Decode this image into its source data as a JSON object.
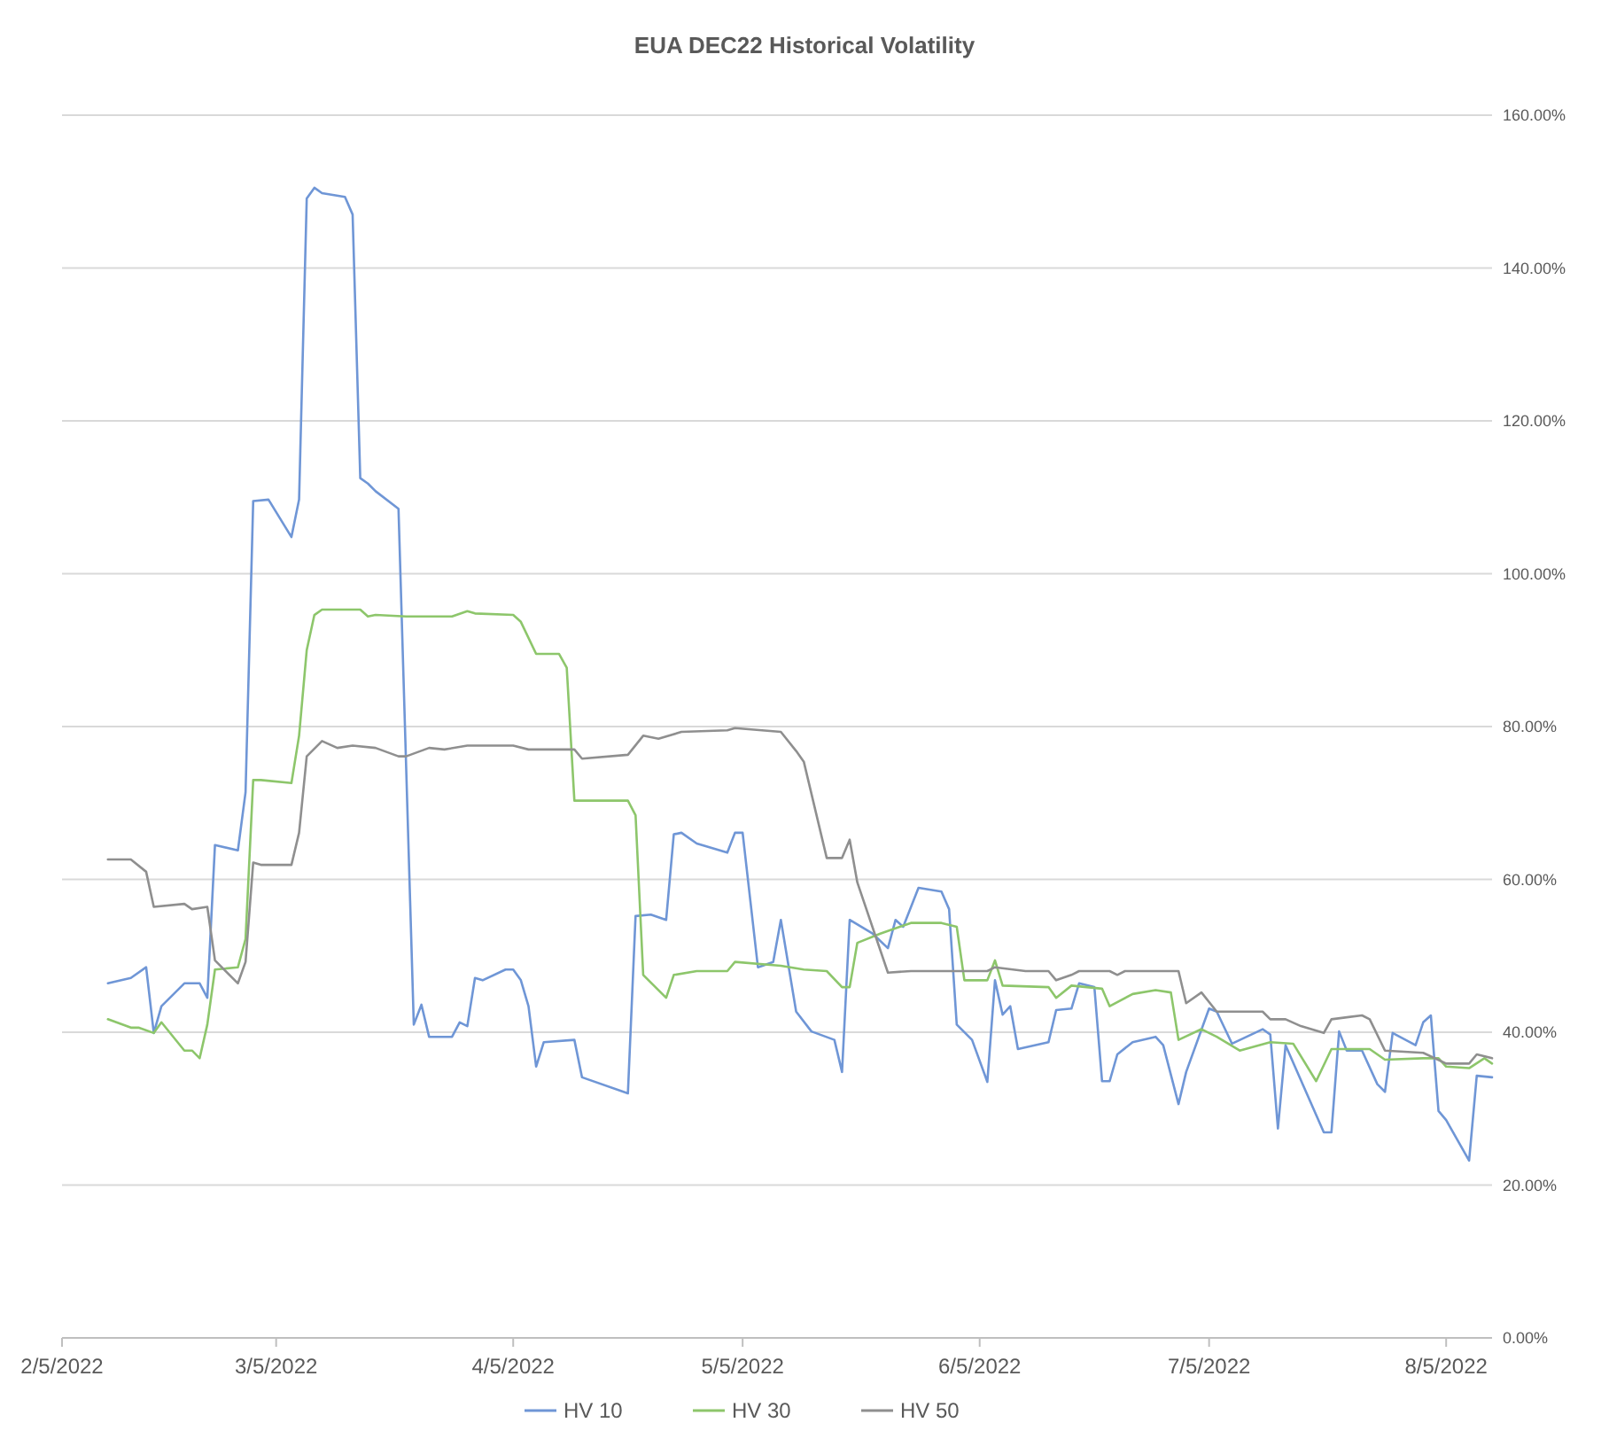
{
  "chart_data": {
    "type": "line",
    "title": "EUA DEC22 Historical Volatility",
    "grid": "y",
    "legend": "bottom",
    "xlim": [
      "2022-02-05",
      "2022-08-11"
    ],
    "xticks": [
      {
        "value": "2022-02-05",
        "label": "2/5/2022"
      },
      {
        "value": "2022-03-05",
        "label": "3/5/2022"
      },
      {
        "value": "2022-04-05",
        "label": "4/5/2022"
      },
      {
        "value": "2022-05-05",
        "label": "5/5/2022"
      },
      {
        "value": "2022-06-05",
        "label": "6/5/2022"
      },
      {
        "value": "2022-07-05",
        "label": "7/5/2022"
      },
      {
        "value": "2022-08-05",
        "label": "8/5/2022"
      }
    ],
    "ylim": [
      0,
      160
    ],
    "yticks": [
      {
        "value": 0,
        "label": "0.00%"
      },
      {
        "value": 20,
        "label": "20.00%"
      },
      {
        "value": 40,
        "label": "40.00%"
      },
      {
        "value": 60,
        "label": "60.00%"
      },
      {
        "value": 80,
        "label": "80.00%"
      },
      {
        "value": 100,
        "label": "100.00%"
      },
      {
        "value": 120,
        "label": "120.00%"
      },
      {
        "value": 140,
        "label": "140.00%"
      },
      {
        "value": 160,
        "label": "160.00%"
      }
    ],
    "series": [
      {
        "name": "HV 10",
        "color": "#6f96d6",
        "x": [
          "2022-02-11",
          "2022-02-14",
          "2022-02-16",
          "2022-02-17",
          "2022-02-18",
          "2022-02-21",
          "2022-02-23",
          "2022-02-24",
          "2022-02-25",
          "2022-02-28",
          "2022-03-01",
          "2022-03-02",
          "2022-03-04",
          "2022-03-07",
          "2022-03-08",
          "2022-03-09",
          "2022-03-10",
          "2022-03-11",
          "2022-03-14",
          "2022-03-15",
          "2022-03-16",
          "2022-03-17",
          "2022-03-18",
          "2022-03-21",
          "2022-03-23",
          "2022-03-24",
          "2022-03-25",
          "2022-03-28",
          "2022-03-29",
          "2022-03-30",
          "2022-03-31",
          "2022-04-01",
          "2022-04-04",
          "2022-04-05",
          "2022-04-06",
          "2022-04-07",
          "2022-04-08",
          "2022-04-09",
          "2022-04-13",
          "2022-04-14",
          "2022-04-20",
          "2022-04-21",
          "2022-04-23",
          "2022-04-25",
          "2022-04-26",
          "2022-04-27",
          "2022-04-29",
          "2022-05-03",
          "2022-05-04",
          "2022-05-05",
          "2022-05-07",
          "2022-05-09",
          "2022-05-10",
          "2022-05-12",
          "2022-05-14",
          "2022-05-17",
          "2022-05-18",
          "2022-05-19",
          "2022-05-22",
          "2022-05-24",
          "2022-05-25",
          "2022-05-26",
          "2022-05-28",
          "2022-05-31",
          "2022-06-01",
          "2022-06-02",
          "2022-06-04",
          "2022-06-06",
          "2022-06-07",
          "2022-06-08",
          "2022-06-09",
          "2022-06-10",
          "2022-06-14",
          "2022-06-15",
          "2022-06-17",
          "2022-06-18",
          "2022-06-20",
          "2022-06-21",
          "2022-06-22",
          "2022-06-23",
          "2022-06-25",
          "2022-06-28",
          "2022-06-29",
          "2022-07-01",
          "2022-07-02",
          "2022-07-05",
          "2022-07-06",
          "2022-07-08",
          "2022-07-12",
          "2022-07-13",
          "2022-07-14",
          "2022-07-15",
          "2022-07-20",
          "2022-07-21",
          "2022-07-22",
          "2022-07-23",
          "2022-07-25",
          "2022-07-27",
          "2022-07-28",
          "2022-07-29",
          "2022-08-01",
          "2022-08-02",
          "2022-08-03",
          "2022-08-04",
          "2022-08-05",
          "2022-08-08",
          "2022-08-09",
          "2022-08-11"
        ],
        "values": [
          46.4,
          47.1,
          48.5,
          39.9,
          43.4,
          46.4,
          46.4,
          44.5,
          64.5,
          63.8,
          71.4,
          109.5,
          109.7,
          104.8,
          109.7,
          149.1,
          150.5,
          149.8,
          149.3,
          147.0,
          112.5,
          111.8,
          110.8,
          108.5,
          41.0,
          43.6,
          39.4,
          39.4,
          41.3,
          40.8,
          47.1,
          46.8,
          48.2,
          48.2,
          46.8,
          43.4,
          35.5,
          38.7,
          39.0,
          34.1,
          32.0,
          55.2,
          55.4,
          54.7,
          65.9,
          66.1,
          64.7,
          63.5,
          66.1,
          66.1,
          48.5,
          49.2,
          54.7,
          42.7,
          40.1,
          39.0,
          34.8,
          54.7,
          52.9,
          51.0,
          54.7,
          53.8,
          58.9,
          58.4,
          56.1,
          41.0,
          39.0,
          33.5,
          46.8,
          42.3,
          43.4,
          37.8,
          38.7,
          42.9,
          43.1,
          46.4,
          45.9,
          33.6,
          33.6,
          37.1,
          38.7,
          39.4,
          38.3,
          30.6,
          34.8,
          43.1,
          42.7,
          38.5,
          40.4,
          39.7,
          27.4,
          38.3,
          26.9,
          26.9,
          40.1,
          37.6,
          37.6,
          33.2,
          32.2,
          39.9,
          38.3,
          41.3,
          42.2,
          29.7,
          28.5,
          23.2,
          34.3,
          34.1
        ]
      },
      {
        "name": "HV 30",
        "color": "#8dc66b",
        "x": [
          "2022-02-11",
          "2022-02-14",
          "2022-02-15",
          "2022-02-17",
          "2022-02-18",
          "2022-02-21",
          "2022-02-22",
          "2022-02-23",
          "2022-02-24",
          "2022-02-25",
          "2022-02-28",
          "2022-03-01",
          "2022-03-02",
          "2022-03-03",
          "2022-03-07",
          "2022-03-08",
          "2022-03-09",
          "2022-03-10",
          "2022-03-11",
          "2022-03-16",
          "2022-03-17",
          "2022-03-18",
          "2022-03-22",
          "2022-03-28",
          "2022-03-30",
          "2022-03-31",
          "2022-04-05",
          "2022-04-06",
          "2022-04-08",
          "2022-04-11",
          "2022-04-12",
          "2022-04-13",
          "2022-04-20",
          "2022-04-21",
          "2022-04-22",
          "2022-04-25",
          "2022-04-26",
          "2022-04-29",
          "2022-05-03",
          "2022-05-04",
          "2022-05-10",
          "2022-05-13",
          "2022-05-16",
          "2022-05-18",
          "2022-05-19",
          "2022-05-20",
          "2022-05-23",
          "2022-05-27",
          "2022-05-31",
          "2022-06-02",
          "2022-06-03",
          "2022-06-06",
          "2022-06-07",
          "2022-06-08",
          "2022-06-14",
          "2022-06-15",
          "2022-06-17",
          "2022-06-21",
          "2022-06-22",
          "2022-06-25",
          "2022-06-28",
          "2022-06-30",
          "2022-07-01",
          "2022-07-04",
          "2022-07-06",
          "2022-07-09",
          "2022-07-13",
          "2022-07-16",
          "2022-07-19",
          "2022-07-21",
          "2022-07-26",
          "2022-07-28",
          "2022-08-02",
          "2022-08-04",
          "2022-08-05",
          "2022-08-08",
          "2022-08-10",
          "2022-08-11"
        ],
        "values": [
          41.7,
          40.6,
          40.6,
          39.9,
          41.3,
          37.6,
          37.6,
          36.6,
          41.0,
          48.2,
          48.5,
          52.2,
          73.0,
          73.0,
          72.6,
          78.8,
          90.0,
          94.6,
          95.3,
          95.3,
          94.4,
          94.6,
          94.4,
          94.4,
          95.1,
          94.8,
          94.6,
          93.7,
          89.5,
          89.5,
          87.7,
          70.3,
          70.3,
          68.4,
          47.5,
          44.5,
          47.5,
          48.0,
          48.0,
          49.2,
          48.7,
          48.2,
          48.0,
          45.9,
          45.9,
          51.7,
          52.9,
          54.3,
          54.3,
          53.8,
          46.8,
          46.8,
          49.4,
          46.1,
          45.9,
          44.5,
          46.1,
          45.7,
          43.4,
          45.0,
          45.5,
          45.2,
          39.0,
          40.4,
          39.4,
          37.6,
          38.7,
          38.5,
          33.6,
          37.8,
          37.8,
          36.4,
          36.6,
          36.6,
          35.5,
          35.3,
          36.6,
          35.9
        ]
      },
      {
        "name": "HV 50",
        "color": "#8f8f8f",
        "x": [
          "2022-02-11",
          "2022-02-14",
          "2022-02-16",
          "2022-02-17",
          "2022-02-21",
          "2022-02-22",
          "2022-02-24",
          "2022-02-25",
          "2022-02-28",
          "2022-03-01",
          "2022-03-02",
          "2022-03-03",
          "2022-03-07",
          "2022-03-08",
          "2022-03-09",
          "2022-03-11",
          "2022-03-13",
          "2022-03-15",
          "2022-03-18",
          "2022-03-21",
          "2022-03-22",
          "2022-03-25",
          "2022-03-27",
          "2022-03-30",
          "2022-04-05",
          "2022-04-07",
          "2022-04-13",
          "2022-04-14",
          "2022-04-20",
          "2022-04-22",
          "2022-04-24",
          "2022-04-27",
          "2022-05-03",
          "2022-05-04",
          "2022-05-10",
          "2022-05-12",
          "2022-05-13",
          "2022-05-16",
          "2022-05-18",
          "2022-05-19",
          "2022-05-20",
          "2022-05-24",
          "2022-05-27",
          "2022-06-06",
          "2022-06-07",
          "2022-06-11",
          "2022-06-14",
          "2022-06-15",
          "2022-06-17",
          "2022-06-18",
          "2022-06-22",
          "2022-06-23",
          "2022-06-24",
          "2022-07-01",
          "2022-07-02",
          "2022-07-04",
          "2022-07-06",
          "2022-07-12",
          "2022-07-13",
          "2022-07-15",
          "2022-07-17",
          "2022-07-20",
          "2022-07-21",
          "2022-07-25",
          "2022-07-26",
          "2022-07-28",
          "2022-08-02",
          "2022-08-05",
          "2022-08-08",
          "2022-08-09",
          "2022-08-11"
        ],
        "values": [
          62.6,
          62.6,
          61.0,
          56.4,
          56.8,
          56.1,
          56.4,
          49.4,
          46.4,
          49.2,
          62.2,
          61.9,
          61.9,
          66.1,
          76.1,
          78.1,
          77.2,
          77.5,
          77.2,
          76.1,
          76.1,
          77.2,
          77.0,
          77.5,
          77.5,
          77.0,
          77.0,
          75.8,
          76.3,
          78.8,
          78.4,
          79.3,
          79.5,
          79.8,
          79.3,
          76.8,
          75.4,
          62.8,
          62.8,
          65.2,
          59.6,
          47.8,
          48.0,
          48.0,
          48.5,
          48.0,
          48.0,
          46.8,
          47.5,
          48.0,
          48.0,
          47.5,
          48.0,
          48.0,
          43.8,
          45.2,
          42.7,
          42.7,
          41.7,
          41.7,
          40.8,
          39.9,
          41.7,
          42.2,
          41.7,
          37.6,
          37.3,
          35.9,
          35.9,
          37.1,
          36.6
        ]
      }
    ]
  }
}
